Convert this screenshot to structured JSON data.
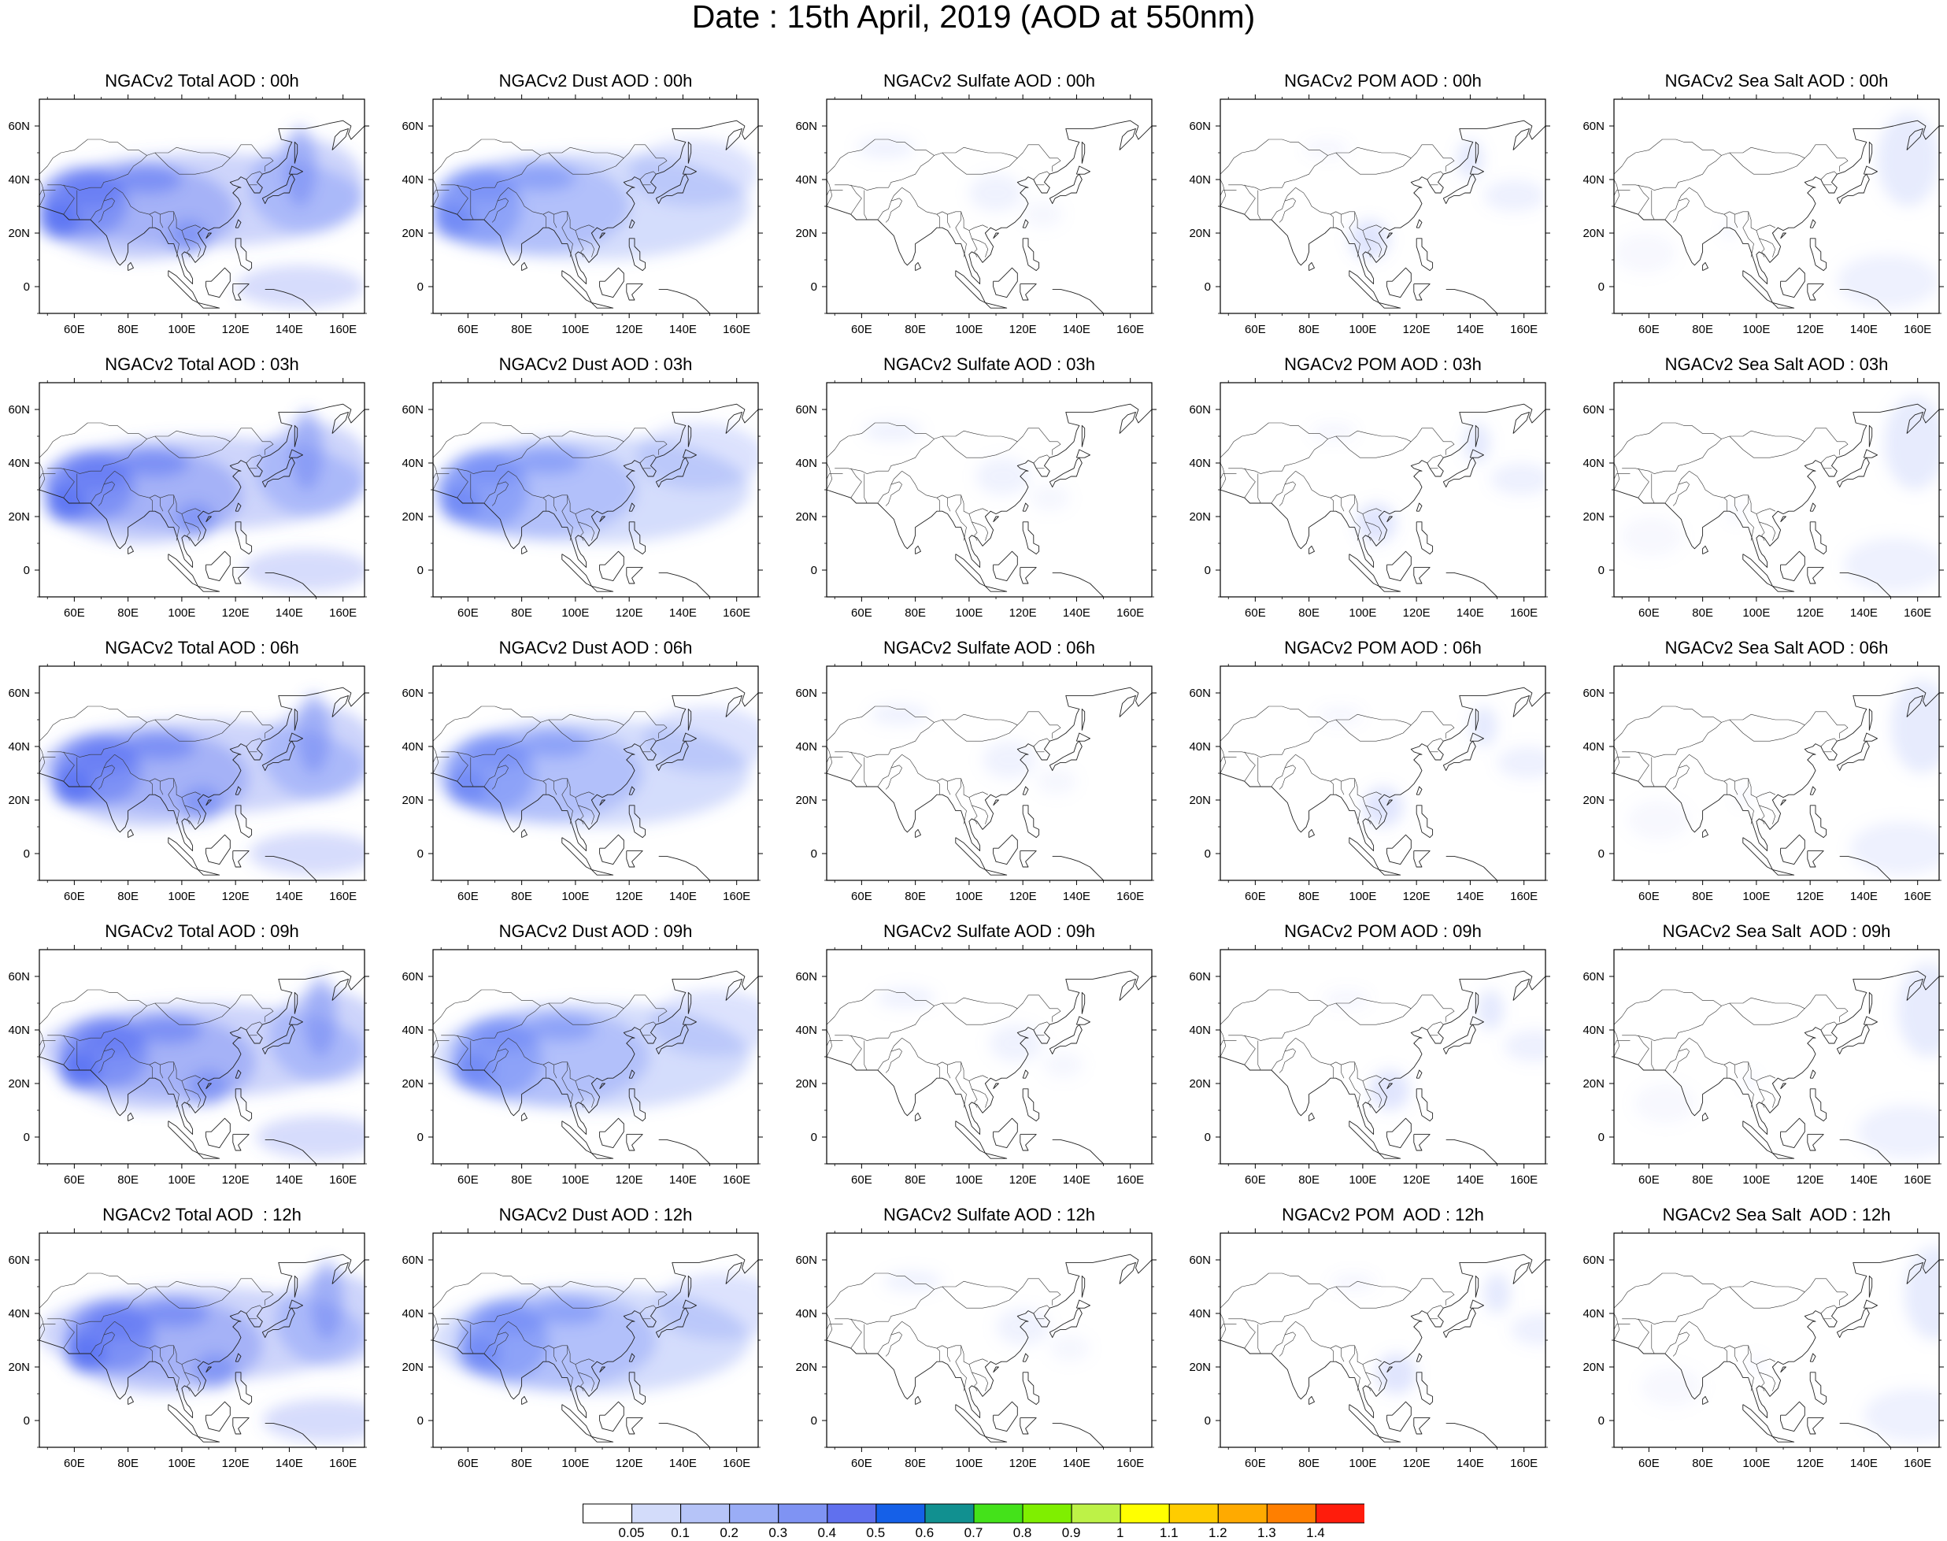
{
  "title": "Date : 15th April, 2019 (AOD at 550nm)",
  "x_ticks": [
    "60E",
    "80E",
    "100E",
    "120E",
    "140E",
    "160E"
  ],
  "y_ticks": [
    "60N",
    "40N",
    "20N",
    "0"
  ],
  "map_extent": {
    "lon": [
      47,
      168
    ],
    "lat": [
      -10,
      70
    ]
  },
  "species": [
    {
      "id": "total",
      "color": "#5b73f2",
      "intensity": 1.0
    },
    {
      "id": "dust",
      "color": "#6b85f5",
      "intensity": 0.85
    },
    {
      "id": "sulfate",
      "color": "#9fb1f7",
      "intensity": 0.2
    },
    {
      "id": "pom",
      "color": "#8096f5",
      "intensity": 0.25
    },
    {
      "id": "seasalt",
      "color": "#9fb1f7",
      "intensity": 0.3
    }
  ],
  "panels": [
    [
      "NGACv2 Total AOD : 00h",
      "NGACv2 Dust AOD : 00h",
      "NGACv2 Sulfate AOD : 00h",
      "NGACv2 POM AOD : 00h",
      "NGACv2 Sea Salt AOD : 00h"
    ],
    [
      "NGACv2 Total AOD : 03h",
      "NGACv2 Dust AOD : 03h",
      "NGACv2 Sulfate AOD : 03h",
      "NGACv2 POM AOD : 03h",
      "NGACv2 Sea Salt AOD : 03h"
    ],
    [
      "NGACv2 Total AOD : 06h",
      "NGACv2 Dust AOD : 06h",
      "NGACv2 Sulfate AOD : 06h",
      "NGACv2 POM AOD : 06h",
      "NGACv2 Sea Salt AOD : 06h"
    ],
    [
      "NGACv2 Total AOD : 09h",
      "NGACv2 Dust AOD : 09h",
      "NGACv2 Sulfate AOD : 09h",
      "NGACv2 POM AOD : 09h",
      "NGACv2 Sea Salt  AOD : 09h"
    ],
    [
      "NGACv2 Total AOD  : 12h",
      "NGACv2 Dust AOD : 12h",
      "NGACv2 Sulfate AOD : 12h",
      "NGACv2 POM  AOD : 12h",
      "NGACv2 Sea Salt  AOD : 12h"
    ]
  ],
  "colorbar": {
    "colors": [
      "#ffffff",
      "#d3dcfa",
      "#b6c4f8",
      "#9aadf6",
      "#7f93f3",
      "#6070ee",
      "#1560e8",
      "#119090",
      "#44e21a",
      "#7fef00",
      "#bdf247",
      "#ffff00",
      "#ffcc00",
      "#ffaa00",
      "#ff7f00",
      "#ff1c0c"
    ],
    "labels": [
      "0.05",
      "0.1",
      "0.2",
      "0.3",
      "0.4",
      "0.5",
      "0.6",
      "0.7",
      "0.8",
      "0.9",
      "1",
      "1.1",
      "1.2",
      "1.3",
      "1.4"
    ]
  }
}
